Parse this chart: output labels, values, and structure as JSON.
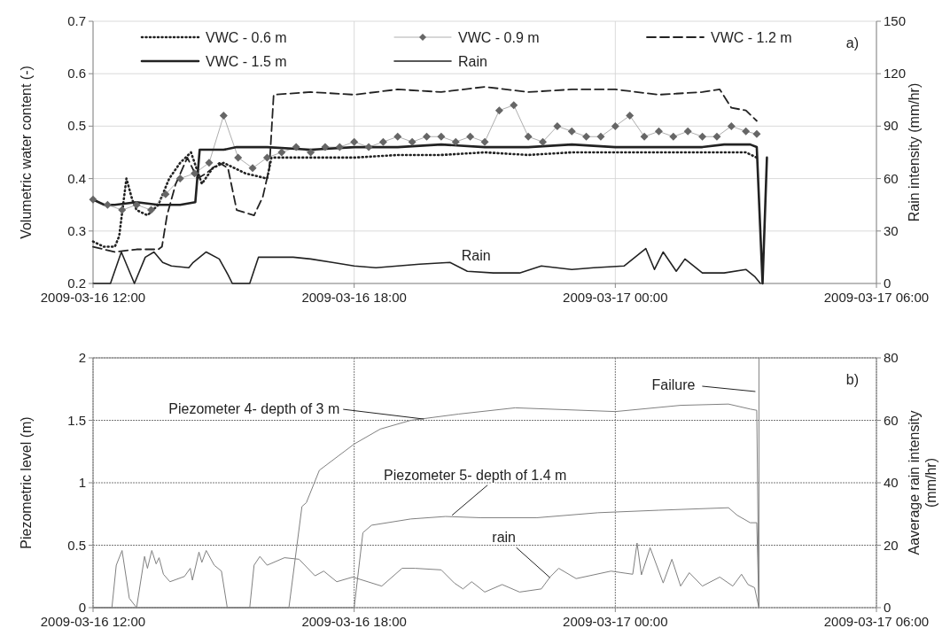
{
  "chart_data": [
    {
      "type": "line",
      "ylabel": "Volumetric water content (-)",
      "y2label": "Rain intensity (mm/hr)",
      "xlim": [
        "2009-03-16T12:00",
        "2009-03-17T06:00"
      ],
      "xticks": [
        {
          "value": "2009-03-16T12:00",
          "label": "2009-03-16 12:00"
        },
        {
          "value": "2009-03-16T18:00",
          "label": "2009-03-16 18:00"
        },
        {
          "value": "2009-03-17T00:00",
          "label": "2009-03-17 00:00"
        },
        {
          "value": "2009-03-17T06:00",
          "label": "2009-03-17 06:00"
        }
      ],
      "ylim": [
        0.2,
        0.7
      ],
      "yticks": [
        0.2,
        0.3,
        0.4,
        0.5,
        0.6,
        0.7
      ],
      "y2lim": [
        0,
        150
      ],
      "y2ticks": [
        0,
        30,
        60,
        90,
        120,
        150
      ],
      "grid": true,
      "legend": "top",
      "annotations": [
        {
          "text": "Rain",
          "x": "2009-03-16T20:48",
          "y": 0.22
        },
        "a)"
      ],
      "series": [
        {
          "name": "VWC - 0.6 m",
          "color": "#222222",
          "line_style": "dotted",
          "marker": "none",
          "x": [
            "2009-03-16T12:00",
            "2009-03-16T12:15",
            "2009-03-16T12:30",
            "2009-03-16T12:36",
            "2009-03-16T12:46",
            "2009-03-16T12:54",
            "2009-03-16T13:00",
            "2009-03-16T13:15",
            "2009-03-16T13:30",
            "2009-03-16T13:45",
            "2009-03-16T14:00",
            "2009-03-16T14:15",
            "2009-03-16T14:30",
            "2009-03-16T14:45",
            "2009-03-16T15:00",
            "2009-03-16T15:15",
            "2009-03-16T15:30",
            "2009-03-16T15:45",
            "2009-03-16T16:00",
            "2009-03-16T16:06",
            "2009-03-16T17:00",
            "2009-03-16T18:00",
            "2009-03-16T19:00",
            "2009-03-16T20:00",
            "2009-03-16T21:00",
            "2009-03-16T22:00",
            "2009-03-16T23:00",
            "2009-03-17T00:00",
            "2009-03-17T01:00",
            "2009-03-17T02:00",
            "2009-03-17T03:00",
            "2009-03-17T03:15"
          ],
          "values": [
            0.28,
            0.27,
            0.27,
            0.29,
            0.4,
            0.36,
            0.34,
            0.33,
            0.35,
            0.4,
            0.43,
            0.45,
            0.39,
            0.42,
            0.43,
            0.42,
            0.41,
            0.405,
            0.4,
            0.44,
            0.44,
            0.44,
            0.445,
            0.445,
            0.45,
            0.445,
            0.45,
            0.45,
            0.45,
            0.45,
            0.45,
            0.44
          ]
        },
        {
          "name": "VWC - 0.9 m",
          "color": "#666666",
          "line_style": "solid",
          "marker": "diamond",
          "x": [
            "2009-03-16T12:00",
            "2009-03-16T12:20",
            "2009-03-16T12:40",
            "2009-03-16T13:00",
            "2009-03-16T13:20",
            "2009-03-16T13:40",
            "2009-03-16T14:00",
            "2009-03-16T14:20",
            "2009-03-16T14:40",
            "2009-03-16T15:00",
            "2009-03-16T15:20",
            "2009-03-16T15:40",
            "2009-03-16T16:00",
            "2009-03-16T16:20",
            "2009-03-16T16:40",
            "2009-03-16T17:00",
            "2009-03-16T17:20",
            "2009-03-16T17:40",
            "2009-03-16T18:00",
            "2009-03-16T18:20",
            "2009-03-16T18:40",
            "2009-03-16T19:00",
            "2009-03-16T19:20",
            "2009-03-16T19:40",
            "2009-03-16T20:00",
            "2009-03-16T20:20",
            "2009-03-16T20:40",
            "2009-03-16T21:00",
            "2009-03-16T21:20",
            "2009-03-16T21:40",
            "2009-03-16T22:00",
            "2009-03-16T22:20",
            "2009-03-16T22:40",
            "2009-03-16T23:00",
            "2009-03-16T23:20",
            "2009-03-16T23:40",
            "2009-03-17T00:00",
            "2009-03-17T00:20",
            "2009-03-17T00:40",
            "2009-03-17T01:00",
            "2009-03-17T01:20",
            "2009-03-17T01:40",
            "2009-03-17T02:00",
            "2009-03-17T02:20",
            "2009-03-17T02:40",
            "2009-03-17T03:00",
            "2009-03-17T03:15"
          ],
          "values": [
            0.36,
            0.35,
            0.34,
            0.35,
            0.34,
            0.37,
            0.4,
            0.41,
            0.43,
            0.52,
            0.44,
            0.42,
            0.44,
            0.45,
            0.46,
            0.45,
            0.46,
            0.46,
            0.47,
            0.46,
            0.47,
            0.48,
            0.47,
            0.48,
            0.48,
            0.47,
            0.48,
            0.47,
            0.53,
            0.54,
            0.48,
            0.47,
            0.5,
            0.49,
            0.48,
            0.48,
            0.5,
            0.52,
            0.48,
            0.49,
            0.48,
            0.49,
            0.48,
            0.48,
            0.5,
            0.49,
            0.485
          ]
        },
        {
          "name": "VWC - 1.2 m",
          "color": "#222222",
          "line_style": "dashed",
          "marker": "none",
          "x": [
            "2009-03-16T12:00",
            "2009-03-16T12:30",
            "2009-03-16T13:00",
            "2009-03-16T13:30",
            "2009-03-16T13:35",
            "2009-03-16T13:42",
            "2009-03-16T13:54",
            "2009-03-16T14:10",
            "2009-03-16T14:24",
            "2009-03-16T14:36",
            "2009-03-16T14:54",
            "2009-03-16T15:06",
            "2009-03-16T15:18",
            "2009-03-16T15:30",
            "2009-03-16T15:42",
            "2009-03-16T15:54",
            "2009-03-16T16:03",
            "2009-03-16T16:09",
            "2009-03-16T17:00",
            "2009-03-16T18:00",
            "2009-03-16T19:00",
            "2009-03-16T20:00",
            "2009-03-16T21:00",
            "2009-03-16T22:00",
            "2009-03-16T23:00",
            "2009-03-17T00:00",
            "2009-03-17T01:00",
            "2009-03-17T02:00",
            "2009-03-17T02:24",
            "2009-03-17T02:40",
            "2009-03-17T03:00",
            "2009-03-17T03:15"
          ],
          "values": [
            0.27,
            0.26,
            0.265,
            0.265,
            0.27,
            0.33,
            0.39,
            0.44,
            0.4,
            0.41,
            0.43,
            0.42,
            0.34,
            0.335,
            0.33,
            0.365,
            0.42,
            0.56,
            0.565,
            0.56,
            0.57,
            0.565,
            0.575,
            0.565,
            0.57,
            0.57,
            0.56,
            0.565,
            0.57,
            0.535,
            0.53,
            0.51
          ]
        },
        {
          "name": "VWC - 1.5 m",
          "color": "#222222",
          "line_style": "solid",
          "marker": "none",
          "x": [
            "2009-03-16T12:00",
            "2009-03-16T12:15",
            "2009-03-16T12:30",
            "2009-03-16T13:00",
            "2009-03-16T13:30",
            "2009-03-16T14:00",
            "2009-03-16T14:21",
            "2009-03-16T14:27",
            "2009-03-16T15:00",
            "2009-03-16T15:18",
            "2009-03-16T16:00",
            "2009-03-16T17:00",
            "2009-03-16T18:00",
            "2009-03-16T19:00",
            "2009-03-16T20:00",
            "2009-03-16T21:00",
            "2009-03-16T22:00",
            "2009-03-16T23:00",
            "2009-03-17T00:00",
            "2009-03-17T01:00",
            "2009-03-17T02:00",
            "2009-03-17T02:30",
            "2009-03-17T03:06",
            "2009-03-17T03:15",
            "2009-03-17T03:23",
            "2009-03-17T03:29"
          ],
          "values": [
            0.36,
            0.35,
            0.35,
            0.355,
            0.35,
            0.35,
            0.355,
            0.455,
            0.455,
            0.46,
            0.46,
            0.455,
            0.46,
            0.46,
            0.465,
            0.46,
            0.46,
            0.465,
            0.46,
            0.46,
            0.46,
            0.465,
            0.465,
            0.46,
            0.2,
            0.44
          ]
        },
        {
          "name": "Rain",
          "color": "#222222",
          "line_style": "solid",
          "marker": "none",
          "axis": "y2",
          "x": [
            "2009-03-16T12:00",
            "2009-03-16T12:24",
            "2009-03-16T12:39",
            "2009-03-16T12:57",
            "2009-03-16T13:12",
            "2009-03-16T13:24",
            "2009-03-16T13:36",
            "2009-03-16T13:48",
            "2009-03-16T14:12",
            "2009-03-16T14:18",
            "2009-03-16T14:36",
            "2009-03-16T14:54",
            "2009-03-16T15:06",
            "2009-03-16T15:12",
            "2009-03-16T15:36",
            "2009-03-16T15:48",
            "2009-03-16T16:12",
            "2009-03-16T16:36",
            "2009-03-16T17:00",
            "2009-03-16T17:30",
            "2009-03-16T18:00",
            "2009-03-16T18:30",
            "2009-03-16T19:00",
            "2009-03-16T19:30",
            "2009-03-16T20:12",
            "2009-03-16T20:36",
            "2009-03-16T21:12",
            "2009-03-16T21:48",
            "2009-03-16T22:18",
            "2009-03-16T23:00",
            "2009-03-16T23:30",
            "2009-03-17T00:12",
            "2009-03-17T00:42",
            "2009-03-17T00:54",
            "2009-03-17T01:06",
            "2009-03-17T01:24",
            "2009-03-17T01:36",
            "2009-03-17T02:00",
            "2009-03-17T02:30",
            "2009-03-17T03:00",
            "2009-03-17T03:12",
            "2009-03-17T03:20"
          ],
          "values": [
            0,
            0,
            18,
            0,
            15,
            18,
            12,
            10,
            9,
            12,
            18,
            14,
            5,
            0,
            0,
            15,
            15,
            15,
            14,
            12,
            10,
            9,
            10,
            11,
            12,
            7,
            6,
            6,
            10,
            8,
            9,
            10,
            20,
            8,
            18,
            7,
            14,
            6,
            6,
            8,
            4,
            0
          ]
        }
      ]
    },
    {
      "type": "line",
      "ylabel": "Piezometric level (m)",
      "y2label": "Aaverage rain intensity (mm/hr)",
      "xlim": [
        "2009-03-16T12:00",
        "2009-03-17T06:00"
      ],
      "xticks": [
        {
          "value": "2009-03-16T12:00",
          "label": "2009-03-16 12:00"
        },
        {
          "value": "2009-03-16T18:00",
          "label": "2009-03-16 18:00"
        },
        {
          "value": "2009-03-17T00:00",
          "label": "2009-03-17 00:00"
        },
        {
          "value": "2009-03-17T06:00",
          "label": "2009-03-17 06:00"
        }
      ],
      "ylim": [
        0,
        2
      ],
      "yticks": [
        0,
        0.5,
        1,
        1.5,
        2
      ],
      "y2lim": [
        0,
        80
      ],
      "y2ticks": [
        0,
        20,
        40,
        60,
        80
      ],
      "grid": true,
      "ref_lines": [
        {
          "axis": "x",
          "value": "2009-03-17T03:18",
          "label": "Failure",
          "color": "#808080"
        }
      ],
      "annotations": [
        {
          "text": "Piezometer 4- depth of 3 m",
          "x": "2009-03-16T19:36",
          "y": 1.51
        },
        {
          "text": "Piezometer 5- depth of 1.4 m",
          "x": "2009-03-16T20:15",
          "y": 0.74
        },
        {
          "text": "rain",
          "x": "2009-03-16T22:30",
          "y": 0.24
        },
        "b)"
      ],
      "series": [
        {
          "color": "#808080",
          "x": [
            "2009-03-16T12:00",
            "2009-03-16T16:30",
            "2009-03-16T16:48",
            "2009-03-16T16:54",
            "2009-03-16T17:12",
            "2009-03-16T18:00",
            "2009-03-16T18:36",
            "2009-03-16T19:18",
            "2009-03-16T20:24",
            "2009-03-16T21:42",
            "2009-03-17T00:00",
            "2009-03-17T01:30",
            "2009-03-17T02:36",
            "2009-03-17T03:06",
            "2009-03-17T03:15",
            "2009-03-17T03:18"
          ],
          "values": [
            0,
            0,
            0.81,
            0.84,
            1.1,
            1.31,
            1.43,
            1.5,
            1.55,
            1.6,
            1.57,
            1.62,
            1.63,
            1.59,
            1.58,
            0
          ]
        },
        {
          "color": "#808080",
          "x": [
            "2009-03-16T12:00",
            "2009-03-16T18:00",
            "2009-03-16T18:12",
            "2009-03-16T18:24",
            "2009-03-16T19:18",
            "2009-03-16T20:06",
            "2009-03-16T20:54",
            "2009-03-16T22:12",
            "2009-03-16T23:36",
            "2009-03-17T01:00",
            "2009-03-17T02:36",
            "2009-03-17T02:48",
            "2009-03-17T03:06",
            "2009-03-17T03:15",
            "2009-03-17T03:18"
          ],
          "values": [
            0,
            0,
            0.6,
            0.66,
            0.71,
            0.73,
            0.72,
            0.72,
            0.76,
            0.78,
            0.8,
            0.74,
            0.68,
            0.68,
            0
          ]
        },
        {
          "color": "#808080",
          "axis": "y2",
          "x": [
            "2009-03-16T12:00",
            "2009-03-16T12:26",
            "2009-03-16T12:32",
            "2009-03-16T12:40",
            "2009-03-16T12:50",
            "2009-03-16T13:00",
            "2009-03-16T13:11",
            "2009-03-16T13:15",
            "2009-03-16T13:21",
            "2009-03-16T13:27",
            "2009-03-16T13:31",
            "2009-03-16T13:37",
            "2009-03-16T13:46",
            "2009-03-16T14:06",
            "2009-03-16T14:14",
            "2009-03-16T14:17",
            "2009-03-16T14:26",
            "2009-03-16T14:30",
            "2009-03-16T14:36",
            "2009-03-16T14:47",
            "2009-03-16T14:57",
            "2009-03-16T15:05",
            "2009-03-16T15:36",
            "2009-03-16T15:42",
            "2009-03-16T15:50",
            "2009-03-16T16:00",
            "2009-03-16T16:24",
            "2009-03-16T16:44",
            "2009-03-16T17:06",
            "2009-03-16T17:18",
            "2009-03-16T17:36",
            "2009-03-16T17:58",
            "2009-03-16T18:38",
            "2009-03-16T19:06",
            "2009-03-16T19:24",
            "2009-03-16T20:00",
            "2009-03-16T20:18",
            "2009-03-16T20:30",
            "2009-03-16T20:42",
            "2009-03-16T21:00",
            "2009-03-16T21:24",
            "2009-03-16T21:48",
            "2009-03-16T22:18",
            "2009-03-16T22:30",
            "2009-03-16T22:42",
            "2009-03-16T23:06",
            "2009-03-16T23:54",
            "2009-03-17T00:24",
            "2009-03-17T00:30",
            "2009-03-17T00:36",
            "2009-03-17T00:48",
            "2009-03-17T01:06",
            "2009-03-17T01:18",
            "2009-03-17T01:30",
            "2009-03-17T01:42",
            "2009-03-17T02:00",
            "2009-03-17T02:24",
            "2009-03-17T02:42",
            "2009-03-17T02:54",
            "2009-03-17T03:03",
            "2009-03-17T03:12",
            "2009-03-17T03:18"
          ],
          "values": [
            0,
            0,
            13.6,
            18.3,
            3,
            0,
            16.4,
            12.6,
            18.3,
            14,
            16,
            10.7,
            8.3,
            10,
            12.6,
            8.8,
            17.8,
            14.5,
            18.3,
            13.6,
            11.7,
            0,
            0,
            13.6,
            16.4,
            13.6,
            16,
            15.5,
            10.2,
            11.7,
            8.3,
            9.8,
            6.9,
            12.6,
            12.6,
            12.1,
            7.9,
            6,
            8.3,
            5,
            7.4,
            5,
            6,
            9.8,
            12.6,
            9.3,
            11.7,
            10.7,
            20.7,
            10.5,
            19.2,
            7.9,
            15.5,
            6.9,
            11.2,
            6.9,
            9.8,
            6.9,
            10.7,
            7.4,
            6.4,
            0
          ]
        }
      ]
    }
  ]
}
